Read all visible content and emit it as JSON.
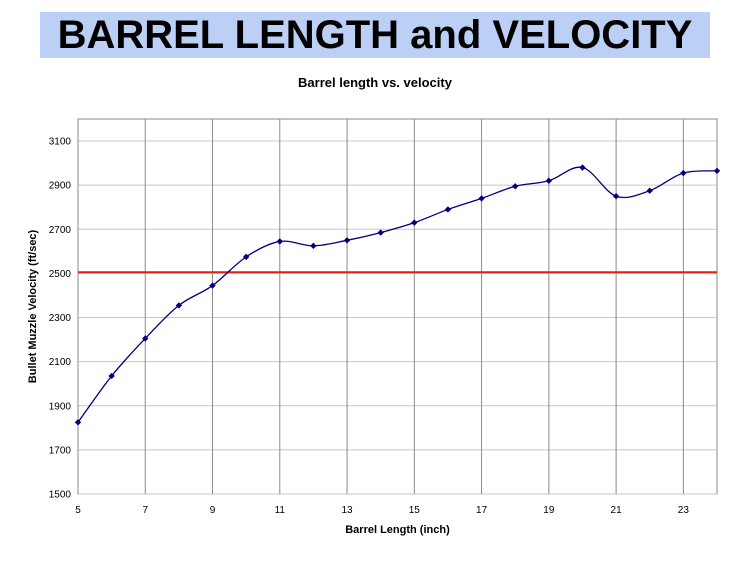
{
  "header": {
    "title": "BARREL LENGTH and VELOCITY"
  },
  "chart_data": {
    "type": "line",
    "title": "Barrel length vs. velocity",
    "xlabel": "Barrel Length (inch)",
    "ylabel": "Bullet Muzzle Velocity (ft/sec)",
    "xlim": [
      5,
      24
    ],
    "ylim": [
      1500,
      3200
    ],
    "x_ticks": [
      5,
      7,
      9,
      11,
      13,
      15,
      17,
      19,
      21,
      23
    ],
    "y_ticks": [
      1500,
      1700,
      1900,
      2100,
      2300,
      2500,
      2700,
      2900,
      3100
    ],
    "y_tick_labels": [
      "1500",
      "1700",
      "1900",
      "2100",
      "2300",
      "2500",
      "2700",
      "2900",
      "3100"
    ],
    "grid": true,
    "series": [
      {
        "x": [
          5,
          6,
          7,
          8,
          9,
          10,
          11,
          12,
          13,
          14,
          15,
          16,
          17,
          18,
          19,
          20,
          21,
          22,
          23,
          24
        ],
        "values": [
          1825,
          2035,
          2205,
          2355,
          2445,
          2575,
          2645,
          2625,
          2650,
          2685,
          2730,
          2790,
          2840,
          2895,
          2920,
          2980,
          2850,
          2875,
          2955,
          2965
        ],
        "color": "#000080"
      }
    ],
    "reference_line": {
      "y": 2505,
      "color": "#e02010"
    }
  }
}
